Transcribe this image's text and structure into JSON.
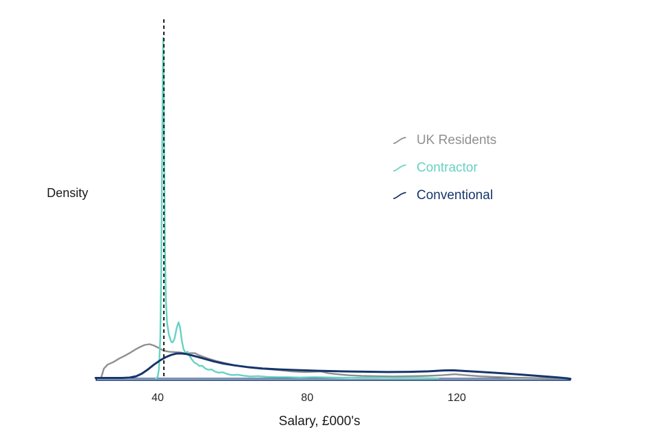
{
  "labels": {
    "ylabel": "Density",
    "xlabel": "Salary, £000's"
  },
  "legend": {
    "position": "upper-right",
    "items": [
      {
        "label": "UK Residents",
        "color": "#8f8f8f"
      },
      {
        "label": "Contractor",
        "color": "#66d2c2"
      },
      {
        "label": "Conventional",
        "color": "#16356b"
      }
    ]
  },
  "chart_data": {
    "type": "line",
    "subtype": "kernel-density",
    "title": "",
    "xlabel": "Salary, £000's",
    "ylabel": "Density",
    "x_ticks": [
      40,
      80,
      120
    ],
    "xlim": [
      23.4,
      150.5
    ],
    "ylim": [
      0,
      1.05
    ],
    "grid": false,
    "y_axis_shown": false,
    "legend_position": "upper-right",
    "axis_color": "#1c3b73",
    "axis_highlight_color": "#c9dded",
    "reference_line": {
      "x": 41.66,
      "color": "#1c1c1c",
      "style": "dashed"
    },
    "note": "density values normalized so Contractor spike peak = 1.0",
    "series": [
      {
        "name": "UK Residents",
        "color": "#8f8f8f",
        "stroke_width": 2.4,
        "points": [
          [
            24.9,
            0.004
          ],
          [
            25.6,
            0.03
          ],
          [
            26.6,
            0.042
          ],
          [
            28.2,
            0.05
          ],
          [
            29.7,
            0.06
          ],
          [
            31.2,
            0.068
          ],
          [
            32.8,
            0.078
          ],
          [
            34.3,
            0.088
          ],
          [
            35.5,
            0.095
          ],
          [
            36.6,
            0.1
          ],
          [
            37.8,
            0.102
          ],
          [
            39.0,
            0.098
          ],
          [
            40.3,
            0.091
          ],
          [
            41.6,
            0.083
          ],
          [
            43.0,
            0.08
          ],
          [
            44.5,
            0.079
          ],
          [
            46.0,
            0.078
          ],
          [
            47.5,
            0.075
          ],
          [
            49.0,
            0.076
          ],
          [
            50.0,
            0.0755
          ],
          [
            51.0,
            0.07
          ],
          [
            52.2,
            0.065
          ],
          [
            53.8,
            0.059
          ],
          [
            55.6,
            0.053
          ],
          [
            57.8,
            0.047
          ],
          [
            60.2,
            0.041
          ],
          [
            62.8,
            0.036
          ],
          [
            65.8,
            0.032
          ],
          [
            69.0,
            0.029
          ],
          [
            72.4,
            0.026
          ],
          [
            75.8,
            0.022
          ],
          [
            79.2,
            0.02
          ],
          [
            81.6,
            0.021
          ],
          [
            83.6,
            0.022
          ],
          [
            85.6,
            0.017
          ],
          [
            88.0,
            0.014
          ],
          [
            91.0,
            0.011
          ],
          [
            94.5,
            0.009
          ],
          [
            98.5,
            0.008
          ],
          [
            103.0,
            0.0075
          ],
          [
            107.5,
            0.008
          ],
          [
            112.0,
            0.009
          ],
          [
            116.0,
            0.011
          ],
          [
            119.5,
            0.014
          ],
          [
            122.5,
            0.011
          ],
          [
            126.0,
            0.008
          ],
          [
            130.0,
            0.006
          ],
          [
            134.5,
            0.004
          ],
          [
            139.5,
            0.003
          ],
          [
            144.5,
            0.002
          ],
          [
            149.8,
            0.002
          ]
        ]
      },
      {
        "name": "Contractor",
        "color": "#66d2c2",
        "stroke_width": 2.4,
        "points": [
          [
            39.4,
            0.0
          ],
          [
            40.0,
            0.006
          ],
          [
            40.35,
            0.03
          ],
          [
            40.7,
            0.12
          ],
          [
            40.95,
            0.32
          ],
          [
            41.2,
            0.66
          ],
          [
            41.38,
            0.93
          ],
          [
            41.5,
            1.0
          ],
          [
            41.62,
            0.9
          ],
          [
            41.78,
            0.6
          ],
          [
            41.95,
            0.38
          ],
          [
            42.2,
            0.235
          ],
          [
            42.5,
            0.165
          ],
          [
            43.0,
            0.13
          ],
          [
            43.6,
            0.11
          ],
          [
            44.0,
            0.107
          ],
          [
            44.5,
            0.118
          ],
          [
            45.1,
            0.15
          ],
          [
            45.6,
            0.166
          ],
          [
            46.0,
            0.15
          ],
          [
            46.5,
            0.11
          ],
          [
            46.9,
            0.088
          ],
          [
            47.4,
            0.077
          ],
          [
            48.0,
            0.08
          ],
          [
            48.5,
            0.068
          ],
          [
            49.1,
            0.058
          ],
          [
            49.8,
            0.048
          ],
          [
            50.5,
            0.044
          ],
          [
            51.2,
            0.038
          ],
          [
            51.9,
            0.039
          ],
          [
            52.7,
            0.031
          ],
          [
            53.5,
            0.027
          ],
          [
            54.4,
            0.028
          ],
          [
            55.3,
            0.022
          ],
          [
            56.3,
            0.0185
          ],
          [
            57.4,
            0.0195
          ],
          [
            58.6,
            0.0145
          ],
          [
            59.9,
            0.0115
          ],
          [
            61.4,
            0.0125
          ],
          [
            63.0,
            0.0095
          ],
          [
            64.8,
            0.0075
          ],
          [
            66.8,
            0.0085
          ],
          [
            69.0,
            0.0065
          ],
          [
            71.5,
            0.0055
          ],
          [
            74.5,
            0.0055
          ],
          [
            78.0,
            0.0045
          ],
          [
            82.0,
            0.0055
          ],
          [
            86.5,
            0.0045
          ],
          [
            91.5,
            0.0035
          ],
          [
            97.0,
            0.004
          ],
          [
            103.0,
            0.003
          ],
          [
            109.0,
            0.003
          ],
          [
            115.0,
            0.002
          ]
        ]
      },
      {
        "name": "Conventional",
        "color": "#16356b",
        "stroke_width": 3,
        "points": [
          [
            23.4,
            0.003
          ],
          [
            26.0,
            0.003
          ],
          [
            28.5,
            0.003
          ],
          [
            30.5,
            0.003
          ],
          [
            32.5,
            0.004
          ],
          [
            34.3,
            0.008
          ],
          [
            35.8,
            0.016
          ],
          [
            37.4,
            0.028
          ],
          [
            39.0,
            0.042
          ],
          [
            40.7,
            0.055
          ],
          [
            42.2,
            0.064
          ],
          [
            43.7,
            0.071
          ],
          [
            45.0,
            0.0745
          ],
          [
            46.2,
            0.075
          ],
          [
            47.5,
            0.0735
          ],
          [
            48.9,
            0.07
          ],
          [
            50.6,
            0.065
          ],
          [
            52.6,
            0.059
          ],
          [
            54.9,
            0.052
          ],
          [
            57.5,
            0.0455
          ],
          [
            60.5,
            0.04
          ],
          [
            64.0,
            0.035
          ],
          [
            68.0,
            0.031
          ],
          [
            72.5,
            0.028
          ],
          [
            77.5,
            0.026
          ],
          [
            83.0,
            0.024
          ],
          [
            89.0,
            0.0225
          ],
          [
            95.0,
            0.0215
          ],
          [
            101.5,
            0.0205
          ],
          [
            107.5,
            0.021
          ],
          [
            112.5,
            0.0225
          ],
          [
            116.5,
            0.025
          ],
          [
            119.0,
            0.0255
          ],
          [
            122.0,
            0.0235
          ],
          [
            126.0,
            0.021
          ],
          [
            130.5,
            0.018
          ],
          [
            135.0,
            0.0145
          ],
          [
            139.5,
            0.011
          ],
          [
            143.5,
            0.0075
          ],
          [
            147.0,
            0.0045
          ],
          [
            149.5,
            0.002
          ],
          [
            150.4,
            0.0005
          ]
        ]
      }
    ]
  }
}
